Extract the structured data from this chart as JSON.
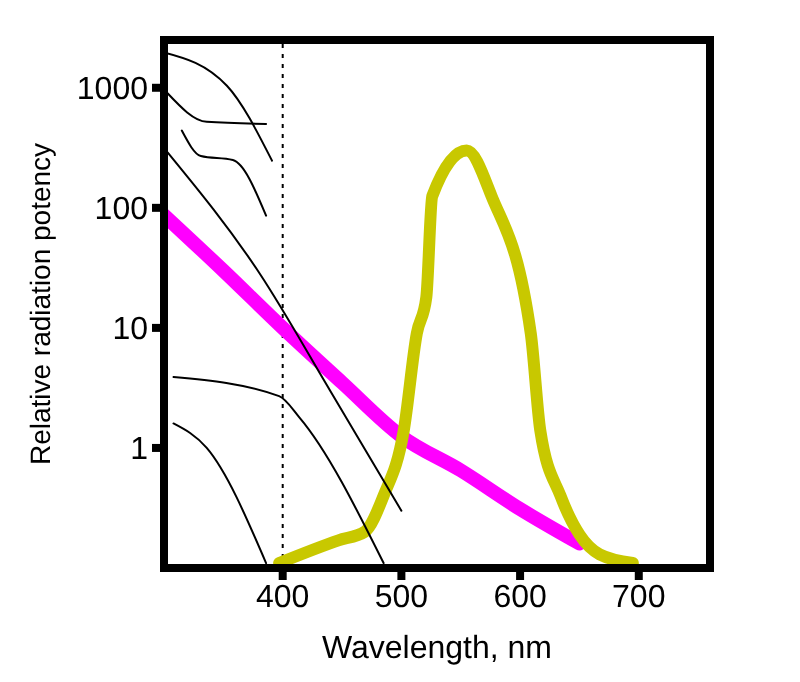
{
  "chart_data": {
    "type": "line",
    "xlabel": "Wavelength, nm",
    "ylabel": "Relative radiation potency",
    "xlim": [
      300,
      760
    ],
    "xticks": [
      400,
      500,
      600,
      700
    ],
    "ylim": [
      0.1,
      2500
    ],
    "yticks": [
      1,
      10,
      100,
      1000
    ],
    "log": "y",
    "marker": "none",
    "line_style": "solid",
    "ref_lines": [
      {
        "axis": "x",
        "value": 400,
        "line_style": "dotted",
        "color": "#000000"
      }
    ],
    "series": [
      {
        "color": "#ff00ff",
        "x": [
          300,
          350,
          400,
          450,
          500,
          550,
          600,
          650
        ],
        "values": [
          87,
          30,
          10,
          3.5,
          1.25,
          0.65,
          0.31,
          0.16
        ]
      },
      {
        "color": "#c8c800",
        "x": [
          397,
          447,
          469,
          485,
          502,
          513,
          521,
          526,
          555,
          576,
          609,
          617,
          634,
          650,
          667,
          695
        ],
        "values": [
          0.11,
          0.17,
          0.2,
          0.4,
          1.4,
          9,
          18,
          125,
          300,
          125,
          9,
          1.4,
          0.4,
          0.19,
          0.13,
          0.11
        ]
      },
      {
        "color": "#000000",
        "x": [
          300,
          353,
          391
        ],
        "values": [
          1970,
          1040,
          247
        ]
      },
      {
        "color": "#000000",
        "x": [
          303,
          336,
          386
        ],
        "values": [
          900,
          520,
          500
        ]
      },
      {
        "color": "#000000",
        "x": [
          315,
          331,
          358,
          386
        ],
        "values": [
          440,
          270,
          250,
          86
        ]
      },
      {
        "color": "#000000",
        "x": [
          303,
          381,
          440,
          500
        ],
        "values": [
          290,
          28,
          3,
          0.3
        ]
      },
      {
        "color": "#000000",
        "x": [
          308,
          397,
          414,
          485
        ],
        "values": [
          3.9,
          2.7,
          1.8,
          0.11
        ]
      },
      {
        "color": "#000000",
        "x": [
          308,
          336,
          386
        ],
        "values": [
          1.6,
          1,
          0.11
        ]
      }
    ]
  }
}
